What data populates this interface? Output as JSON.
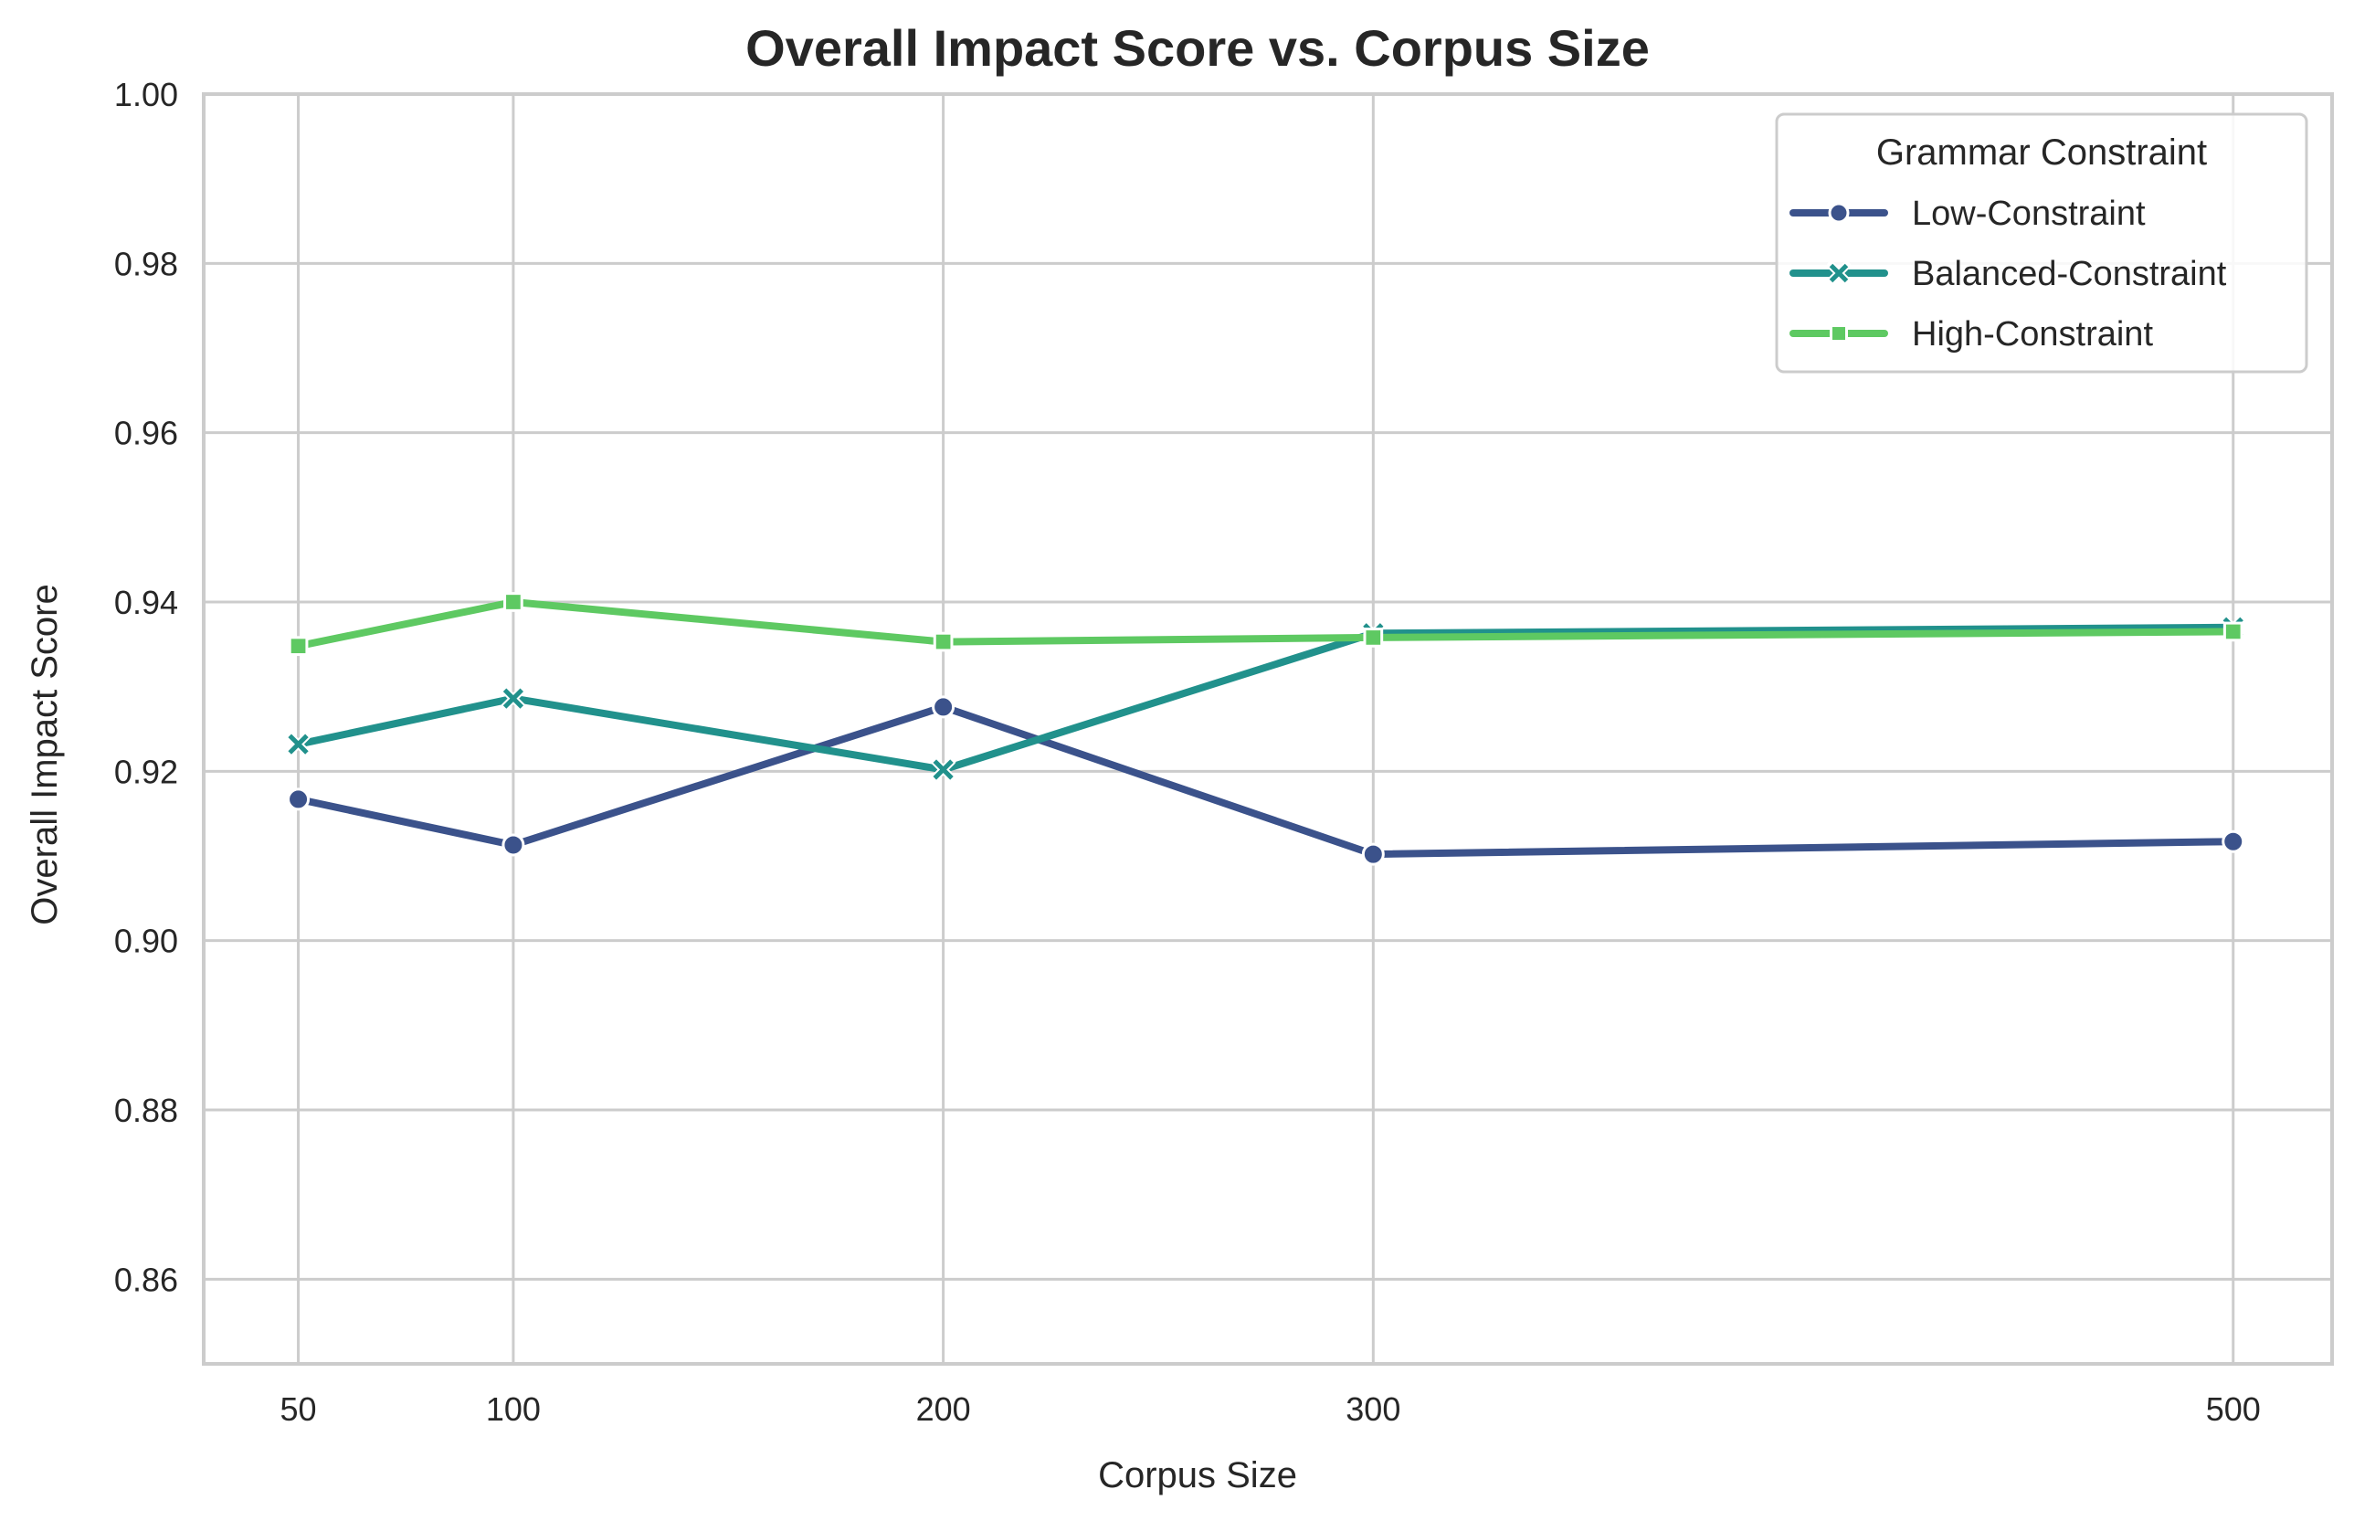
{
  "chart_data": {
    "type": "line",
    "title": "Overall Impact Score vs. Corpus Size",
    "xlabel": "Corpus Size",
    "ylabel": "Overall Impact Score",
    "x": [
      50,
      100,
      200,
      300,
      500
    ],
    "x_ticks": [
      50,
      100,
      200,
      300,
      500
    ],
    "xlim": [
      28,
      523
    ],
    "ylim": [
      0.85,
      1.0
    ],
    "y_ticks": [
      0.86,
      0.88,
      0.9,
      0.92,
      0.94,
      0.96,
      0.98,
      1.0
    ],
    "grid": true,
    "legend": {
      "title": "Grammar Constraint",
      "placement": "top-right"
    },
    "series": [
      {
        "name": "Low-Constraint",
        "color": "#3b528b",
        "marker": "circle",
        "values": [
          0.9167,
          0.9113,
          0.9276,
          0.9102,
          0.9117
        ]
      },
      {
        "name": "Balanced-Constraint",
        "color": "#21918c",
        "marker": "x",
        "values": [
          0.9232,
          0.9286,
          0.9202,
          0.9363,
          0.937
        ]
      },
      {
        "name": "High-Constraint",
        "color": "#5ec962",
        "marker": "square",
        "values": [
          0.9348,
          0.94,
          0.9353,
          0.9358,
          0.9365
        ]
      }
    ]
  }
}
